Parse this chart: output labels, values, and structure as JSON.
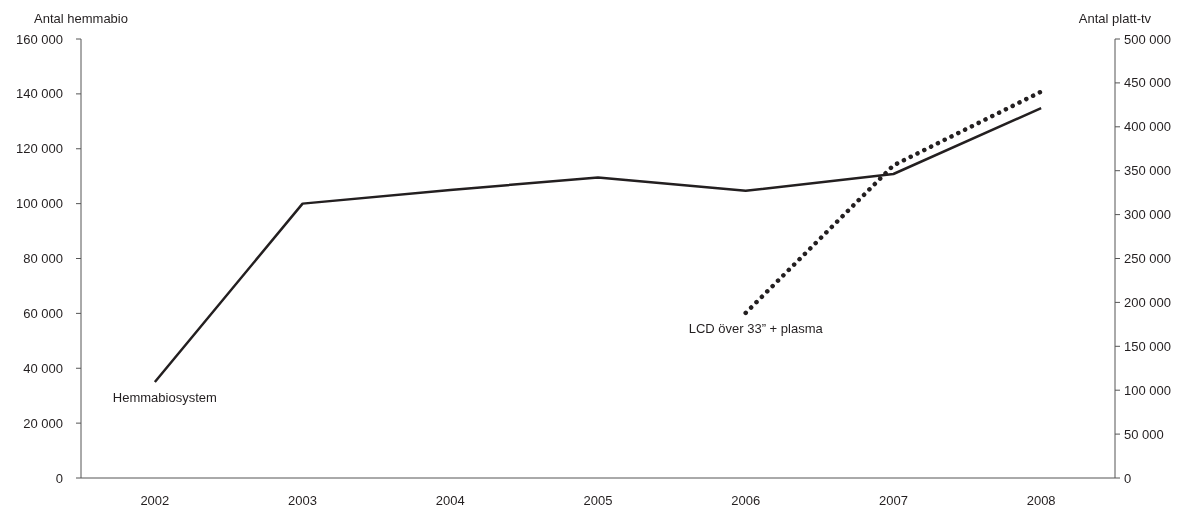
{
  "chart_data": {
    "type": "line",
    "categories": [
      "2002",
      "2003",
      "2004",
      "2005",
      "2006",
      "2007",
      "2008"
    ],
    "ylabel": "Antal hemmabio",
    "y2label": "Antal platt-tv",
    "ylim": [
      0,
      160000
    ],
    "yticks": [
      {
        "value": 0,
        "label": "0"
      },
      {
        "value": 20000,
        "label": "20 000"
      },
      {
        "value": 40000,
        "label": "40 000"
      },
      {
        "value": 60000,
        "label": "60 000"
      },
      {
        "value": 80000,
        "label": "80 000"
      },
      {
        "value": 100000,
        "label": "100 000"
      },
      {
        "value": 120000,
        "label": "120 000"
      },
      {
        "value": 140000,
        "label": "140 000"
      },
      {
        "value": 160000,
        "label": "160 000"
      }
    ],
    "y2lim": [
      0,
      500000
    ],
    "y2ticks": [
      {
        "value": 0,
        "label": "0"
      },
      {
        "value": 50000,
        "label": "50 000"
      },
      {
        "value": 100000,
        "label": "100 000"
      },
      {
        "value": 150000,
        "label": "150 000"
      },
      {
        "value": 200000,
        "label": "200 000"
      },
      {
        "value": 250000,
        "label": "250 000"
      },
      {
        "value": 300000,
        "label": "300 000"
      },
      {
        "value": 350000,
        "label": "350 000"
      },
      {
        "value": 400000,
        "label": "400 000"
      },
      {
        "value": 450000,
        "label": "450 000"
      },
      {
        "value": 500000,
        "label": "500 000"
      }
    ],
    "series": [
      {
        "name": "Hemmabiosystem",
        "color": "#231f20",
        "line_style": "solid",
        "values": [
          35000,
          100000,
          105000,
          109500,
          104700,
          110800,
          134800
        ]
      },
      {
        "name": "LCD över 33” + plasma",
        "color": "#231f20",
        "line_style": "dotted",
        "axis": "y2",
        "values": [
          null,
          null,
          null,
          null,
          188000,
          356000,
          440000
        ]
      }
    ]
  }
}
